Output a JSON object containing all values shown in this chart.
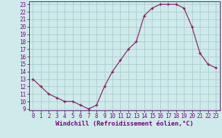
{
  "x": [
    0,
    1,
    2,
    3,
    4,
    5,
    6,
    7,
    8,
    9,
    10,
    11,
    12,
    13,
    14,
    15,
    16,
    17,
    18,
    19,
    20,
    21,
    22,
    23
  ],
  "y": [
    13,
    12,
    11,
    10.5,
    10,
    10,
    9.5,
    9,
    9.5,
    12,
    14,
    15.5,
    17,
    18,
    21.5,
    22.5,
    23,
    23,
    23,
    22.5,
    20,
    16.5,
    15,
    14.5
  ],
  "line_color": "#882266",
  "marker": "+",
  "bg_color": "#ceeaea",
  "grid_color": "#aacccc",
  "xlabel": "Windchill (Refroidissement éolien,°C)",
  "ylim": [
    8.8,
    23.4
  ],
  "xlim": [
    -0.5,
    23.5
  ],
  "yticks": [
    9,
    10,
    11,
    12,
    13,
    14,
    15,
    16,
    17,
    18,
    19,
    20,
    21,
    22,
    23
  ],
  "xticks": [
    0,
    1,
    2,
    3,
    4,
    5,
    6,
    7,
    8,
    9,
    10,
    11,
    12,
    13,
    14,
    15,
    16,
    17,
    18,
    19,
    20,
    21,
    22,
    23
  ],
  "tick_fontsize": 5.5,
  "xlabel_fontsize": 6.5,
  "axis_color": "#770077",
  "spine_color": "#440055",
  "linewidth": 0.9,
  "markersize": 3.5,
  "markeredgewidth": 1.0
}
